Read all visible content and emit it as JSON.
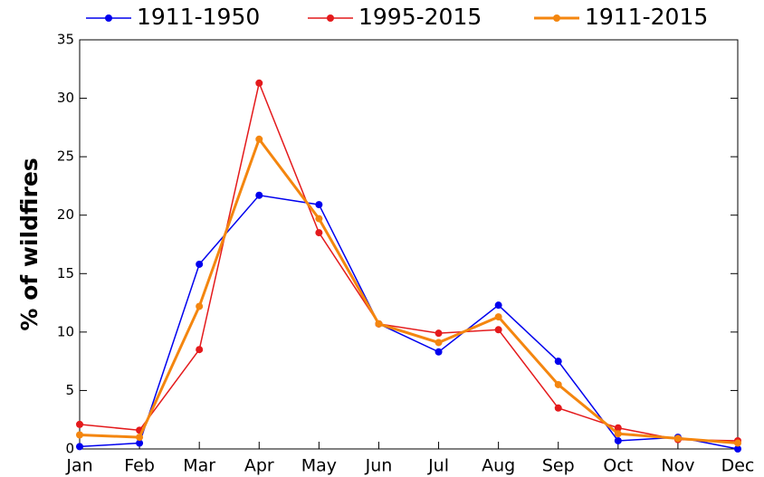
{
  "chart_data": {
    "type": "line",
    "ylabel": "% of wildfires",
    "categories": [
      "Jan",
      "Feb",
      "Mar",
      "Apr",
      "May",
      "Jun",
      "Jul",
      "Aug",
      "Sep",
      "Oct",
      "Nov",
      "Dec"
    ],
    "series": [
      {
        "name": "1911-1950",
        "color": "#0000ee",
        "values": [
          0.2,
          0.5,
          15.8,
          21.7,
          20.9,
          10.7,
          8.3,
          12.3,
          7.5,
          0.7,
          1.0,
          0.0
        ]
      },
      {
        "name": "1995-2015",
        "color": "#e41a1c",
        "values": [
          2.1,
          1.6,
          8.5,
          31.3,
          18.5,
          10.7,
          9.9,
          10.2,
          3.5,
          1.8,
          0.8,
          0.7
        ]
      },
      {
        "name": "1911-2015",
        "color": "#f4860f",
        "values": [
          1.2,
          1.0,
          12.2,
          26.5,
          19.7,
          10.7,
          9.1,
          11.3,
          5.5,
          1.3,
          0.9,
          0.5
        ]
      }
    ],
    "ylim": [
      0,
      35
    ],
    "yticks": [
      0,
      5,
      10,
      15,
      20,
      25,
      30,
      35
    ],
    "legend": "top"
  }
}
